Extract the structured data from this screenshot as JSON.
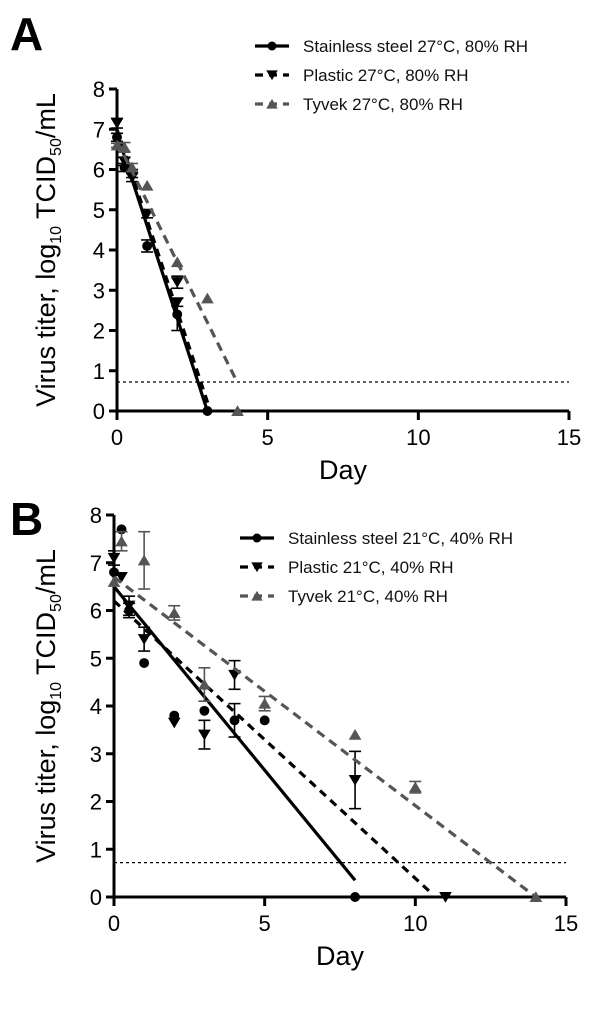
{
  "chart_data": [
    {
      "type": "line",
      "panel": "A",
      "xlabel": "Day",
      "ylabel": "Virus titer, log10 TCID50/mL",
      "xlim": [
        0,
        15
      ],
      "ylim": [
        0,
        8
      ],
      "xticks": [
        "0",
        "5",
        "10",
        "15"
      ],
      "yticks": [
        "0",
        "1",
        "2",
        "3",
        "4",
        "5",
        "6",
        "7",
        "8"
      ],
      "detection_limit": 0.72,
      "legend_position": "top-right",
      "series": [
        {
          "name": "Stainless steel 27°C, 80% RH",
          "color": "#000000",
          "marker": "circle",
          "line_style": "solid",
          "points": [
            {
              "x": 0,
              "y": 6.8,
              "err": 0.1
            },
            {
              "x": 0.25,
              "y": 6.05,
              "err": 0.1
            },
            {
              "x": 0.5,
              "y": 5.9,
              "err": 0.1
            },
            {
              "x": 1,
              "y": 4.1,
              "err": 0.15
            },
            {
              "x": 2,
              "y": 2.4,
              "err": 0.4
            },
            {
              "x": 3,
              "y": 0,
              "err": 0
            }
          ],
          "fit": [
            [
              0,
              6.9
            ],
            [
              3,
              0
            ]
          ]
        },
        {
          "name": "Plastic 27°C, 80% RH",
          "color": "#000000",
          "marker": "triangle-down",
          "line_style": "dashed",
          "points": [
            {
              "x": 0,
              "y": 7.15,
              "err": 0.12
            },
            {
              "x": 0.25,
              "y": 6.2,
              "err": 0.1
            },
            {
              "x": 0.5,
              "y": 5.8,
              "err": 0.1
            },
            {
              "x": 1,
              "y": 4.9,
              "err": 0.1
            },
            {
              "x": 2,
              "y": 3.2,
              "err": 0.15
            },
            {
              "x": 2,
              "y": 2.7,
              "err": 0.1
            }
          ],
          "fit": [
            [
              0,
              7.0
            ],
            [
              3.1,
              0
            ]
          ]
        },
        {
          "name": "Tyvek 27°C, 80% RH",
          "color": "#555555",
          "marker": "triangle-up",
          "line_style": "dashed",
          "points": [
            {
              "x": 0,
              "y": 6.6,
              "err": 0.05
            },
            {
              "x": 0.25,
              "y": 6.55,
              "err": 0.12
            },
            {
              "x": 0.5,
              "y": 6.05,
              "err": 0.1
            },
            {
              "x": 1,
              "y": 5.6,
              "err": 0
            },
            {
              "x": 2,
              "y": 3.7,
              "err": 0
            },
            {
              "x": 3,
              "y": 2.8,
              "err": 0
            },
            {
              "x": 4,
              "y": 0,
              "err": 0
            }
          ],
          "fit": [
            [
              0,
              6.7
            ],
            [
              4,
              0.7
            ]
          ]
        }
      ]
    },
    {
      "type": "line",
      "panel": "B",
      "xlabel": "Day",
      "ylabel": "Virus titer, log10 TCID50/mL",
      "xlim": [
        0,
        15
      ],
      "ylim": [
        0,
        8
      ],
      "xticks": [
        "0",
        "5",
        "10",
        "15"
      ],
      "yticks": [
        "0",
        "1",
        "2",
        "3",
        "4",
        "5",
        "6",
        "7",
        "8"
      ],
      "detection_limit": 0.72,
      "legend_position": "top-right",
      "series": [
        {
          "name": "Stainless steel 21°C, 40% RH",
          "color": "#000000",
          "marker": "circle",
          "line_style": "solid",
          "points": [
            {
              "x": 0,
              "y": 6.8,
              "err": 0
            },
            {
              "x": 0.25,
              "y": 7.7,
              "err": 0
            },
            {
              "x": 0.5,
              "y": 6.0,
              "err": 0.15
            },
            {
              "x": 1,
              "y": 4.9,
              "err": 0
            },
            {
              "x": 2,
              "y": 3.8,
              "err": 0
            },
            {
              "x": 3,
              "y": 3.9,
              "err": 0
            },
            {
              "x": 4,
              "y": 3.7,
              "err": 0.35
            },
            {
              "x": 5,
              "y": 3.7,
              "err": 0
            },
            {
              "x": 8,
              "y": 0,
              "err": 0
            }
          ],
          "fit": [
            [
              0,
              6.5
            ],
            [
              8,
              0.35
            ]
          ]
        },
        {
          "name": "Plastic 21°C, 40% RH",
          "color": "#000000",
          "marker": "triangle-down",
          "line_style": "dashed",
          "points": [
            {
              "x": 0,
              "y": 7.1,
              "err": 0.15
            },
            {
              "x": 0.25,
              "y": 6.7,
              "err": 0
            },
            {
              "x": 0.5,
              "y": 6.1,
              "err": 0.2
            },
            {
              "x": 1,
              "y": 5.4,
              "err": 0.25
            },
            {
              "x": 2,
              "y": 3.65,
              "err": 0
            },
            {
              "x": 3,
              "y": 3.4,
              "err": 0.3
            },
            {
              "x": 4,
              "y": 4.65,
              "err": 0.3
            },
            {
              "x": 8,
              "y": 2.45,
              "err": 0.6
            },
            {
              "x": 11,
              "y": 0,
              "err": 0
            }
          ],
          "fit": [
            [
              0,
              6.2
            ],
            [
              10.5,
              0.1
            ]
          ]
        },
        {
          "name": "Tyvek 21°C, 40% RH",
          "color": "#555555",
          "marker": "triangle-up",
          "line_style": "dashed",
          "points": [
            {
              "x": 0,
              "y": 6.6,
              "err": 0
            },
            {
              "x": 0.25,
              "y": 7.45,
              "err": 0.2
            },
            {
              "x": 1,
              "y": 7.05,
              "err": 0.6
            },
            {
              "x": 2,
              "y": 5.95,
              "err": 0.15
            },
            {
              "x": 3,
              "y": 4.45,
              "err": 0.35
            },
            {
              "x": 5,
              "y": 4.05,
              "err": 0.15
            },
            {
              "x": 8,
              "y": 3.4,
              "err": 0
            },
            {
              "x": 10,
              "y": 2.3,
              "err": 0.12
            },
            {
              "x": 14,
              "y": 0,
              "err": 0
            }
          ],
          "fit": [
            [
              0,
              6.7
            ],
            [
              14,
              0
            ]
          ]
        }
      ]
    }
  ]
}
